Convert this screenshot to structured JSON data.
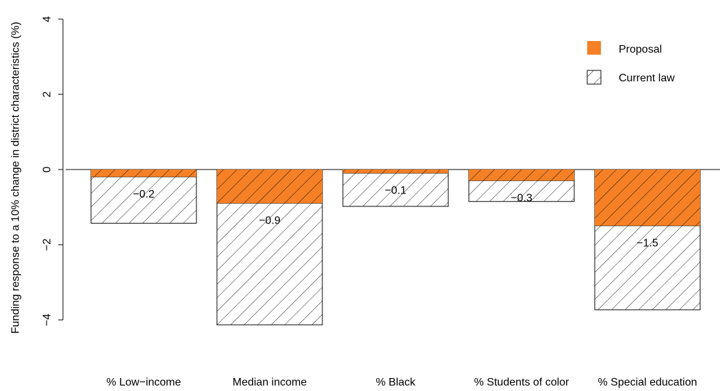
{
  "chart_data": {
    "type": "bar",
    "title": "",
    "xlabel": "",
    "ylabel": "Funding response to a 10% change in district characteristics (%)",
    "ylim": [
      -4,
      4
    ],
    "yticks": [
      "4",
      "2",
      "0",
      "−2",
      "−4"
    ],
    "ytick_values": [
      4,
      2,
      0,
      -2,
      -4
    ],
    "categories": [
      "% Low−income",
      "Median income",
      "% Black",
      "% Students of color",
      "% Special education"
    ],
    "series": [
      {
        "name": "Current law",
        "values": [
          -1.43,
          -4.13,
          -0.98,
          -0.85,
          -3.73
        ],
        "fill": "hatch"
      },
      {
        "name": "Proposal",
        "values": [
          -0.2,
          -0.9,
          -0.1,
          -0.3,
          -1.5
        ],
        "labels": [
          "−0.2",
          "−0.9",
          "−0.1",
          "−0.3",
          "−1.5"
        ],
        "color": "#F58025"
      }
    ],
    "legend": {
      "position": "top-right",
      "entries": [
        {
          "label": "Proposal",
          "style": "solid",
          "color": "#F58025"
        },
        {
          "label": "Current law",
          "style": "hatch"
        }
      ]
    },
    "grid": false
  }
}
